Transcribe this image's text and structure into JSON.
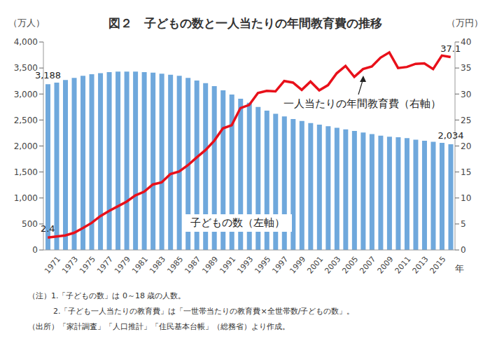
{
  "chart_data": {
    "type": "bar_line",
    "title": "図２　子どもの数と一人当たりの年間教育費の推移",
    "ylabel": "（万人）",
    "y2label": "（万円）",
    "xlabel": "年",
    "annotations": [
      "一人当たりの年間教育費（右軸）",
      "子どもの数（左軸）"
    ],
    "notes": [
      "（注）1.「子どもの数」は 0～18 歳の人数。",
      "2.「子ども一人当たりの教育費」は「一世帯当たりの教育費×全世帯数/子どもの数」。",
      "（出所）「家計調査」「人口推計」「住民基本台帳」（総務省）より作成。"
    ],
    "categories": [
      null,
      "1971",
      null,
      "1973",
      null,
      "1975",
      null,
      "1977",
      null,
      "1979",
      null,
      "1981",
      null,
      "1983",
      null,
      "1985",
      null,
      "1987",
      null,
      "1989",
      null,
      "1991",
      null,
      "1993",
      null,
      "1995",
      null,
      "1997",
      null,
      "1999",
      null,
      "2001",
      null,
      "2003",
      null,
      "2005",
      null,
      "2007",
      null,
      "2009",
      null,
      "2011",
      null,
      "2013",
      null,
      "2015",
      null
    ],
    "series": [
      {
        "name": "子どもの数",
        "type": "bar",
        "color": "#6fa8dc",
        "data_labels": true,
        "values": [
          3188,
          3220,
          3270,
          3310,
          3350,
          3380,
          3400,
          3420,
          3430,
          3430,
          3430,
          3420,
          3410,
          3390,
          3370,
          3350,
          3310,
          3260,
          3210,
          3150,
          3070,
          2990,
          2910,
          2830,
          2750,
          2680,
          2620,
          2570,
          2520,
          2480,
          2440,
          2410,
          2380,
          2350,
          2320,
          2290,
          2260,
          2230,
          2200,
          2180,
          2170,
          2150,
          2120,
          2100,
          2080,
          2060,
          2034
        ],
        "value_labels": [
          "3,188",
          null,
          null,
          null,
          null,
          null,
          null,
          null,
          null,
          null,
          null,
          null,
          null,
          null,
          null,
          null,
          null,
          null,
          null,
          null,
          null,
          null,
          null,
          null,
          null,
          null,
          null,
          null,
          null,
          null,
          null,
          null,
          null,
          null,
          null,
          null,
          null,
          null,
          null,
          null,
          null,
          null,
          null,
          null,
          null,
          null,
          "2,034"
        ]
      },
      {
        "name": "一人当たりの年間教育費",
        "type": "line",
        "axis": "y2",
        "color": "#e8101a",
        "data_labels": true,
        "values": [
          2.4,
          2.6,
          2.8,
          3.3,
          4.2,
          5.2,
          6.5,
          7.5,
          8.4,
          9.3,
          10.5,
          11.2,
          12.6,
          13.0,
          14.6,
          15.1,
          16.3,
          17.8,
          19.2,
          21.0,
          23.4,
          24.0,
          27.3,
          27.9,
          30.2,
          30.6,
          30.5,
          32.5,
          32.2,
          30.8,
          32.4,
          30.7,
          31.7,
          34.0,
          35.4,
          33.3,
          34.8,
          35.3,
          37.0,
          38.0,
          35.0,
          35.2,
          35.8,
          35.9,
          34.8,
          37.4,
          37.1
        ],
        "value_labels": [
          "2.4",
          null,
          null,
          null,
          null,
          null,
          null,
          null,
          null,
          null,
          null,
          null,
          null,
          null,
          null,
          null,
          null,
          null,
          null,
          null,
          null,
          null,
          null,
          null,
          null,
          null,
          null,
          null,
          null,
          null,
          null,
          null,
          null,
          null,
          null,
          null,
          null,
          null,
          null,
          null,
          null,
          null,
          null,
          null,
          null,
          null,
          "37.1"
        ]
      }
    ],
    "ylim": [
      0,
      4000
    ],
    "yticks": [
      0,
      500,
      {
        "value": 1000,
        "label": "1,000"
      },
      {
        "value": 1500,
        "label": "1,500"
      },
      {
        "value": 2000,
        "label": "2,000"
      },
      {
        "value": 2500,
        "label": "2,500"
      },
      {
        "value": 3000,
        "label": "3,000"
      },
      {
        "value": 3500,
        "label": "3,500"
      },
      {
        "value": 4000,
        "label": "4,000"
      }
    ],
    "y2lim": [
      0,
      40
    ],
    "y2ticks": [
      0,
      5,
      10,
      15,
      20,
      25,
      30,
      35,
      40
    ],
    "grid": false
  }
}
